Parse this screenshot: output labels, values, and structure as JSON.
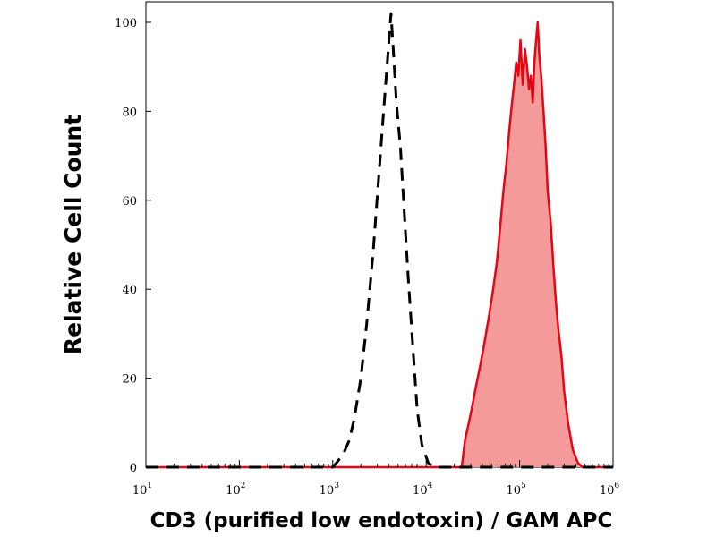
{
  "chart_data": {
    "type": "area",
    "xlabel": "CD3 (purified low endotoxin) / GAM APC",
    "ylabel": "Relative Cell Count",
    "x_scale": "log",
    "xlim": [
      10,
      1000000
    ],
    "ylim": [
      0,
      100
    ],
    "x_ticks": [
      {
        "base": "10",
        "exp": "1",
        "value": 10
      },
      {
        "base": "10",
        "exp": "2",
        "value": 100
      },
      {
        "base": "10",
        "exp": "3",
        "value": 1000
      },
      {
        "base": "10",
        "exp": "4",
        "value": 10000
      },
      {
        "base": "10",
        "exp": "5",
        "value": 100000
      },
      {
        "base": "10",
        "exp": "6",
        "value": 1000000
      }
    ],
    "y_ticks": [
      "0",
      "20",
      "40",
      "60",
      "80",
      "100"
    ],
    "series": [
      {
        "style": "dashed",
        "color": "#000000",
        "fill": "none",
        "points": [
          [
            10,
            0
          ],
          [
            100,
            0
          ],
          [
            1000,
            0
          ],
          [
            1100,
            1
          ],
          [
            1300,
            3
          ],
          [
            1500,
            6
          ],
          [
            1700,
            11
          ],
          [
            2000,
            20
          ],
          [
            2300,
            32
          ],
          [
            2700,
            48
          ],
          [
            3100,
            65
          ],
          [
            3500,
            80
          ],
          [
            3900,
            93
          ],
          [
            4200,
            102
          ],
          [
            4500,
            92
          ],
          [
            4800,
            82
          ],
          [
            5300,
            72
          ],
          [
            5800,
            58
          ],
          [
            6400,
            43
          ],
          [
            7200,
            27
          ],
          [
            8000,
            13
          ],
          [
            9000,
            5
          ],
          [
            10500,
            1
          ],
          [
            12000,
            0
          ],
          [
            1000000,
            0
          ]
        ]
      },
      {
        "style": "solid",
        "color": "#e30613",
        "fill": "#f49a9a",
        "points": [
          [
            10,
            0
          ],
          [
            10000,
            0
          ],
          [
            24000,
            0
          ],
          [
            26000,
            6
          ],
          [
            30000,
            12
          ],
          [
            34000,
            18
          ],
          [
            38000,
            23
          ],
          [
            42000,
            28
          ],
          [
            47000,
            34
          ],
          [
            52000,
            40
          ],
          [
            57000,
            46
          ],
          [
            62000,
            54
          ],
          [
            67000,
            62
          ],
          [
            72000,
            68
          ],
          [
            77000,
            75
          ],
          [
            82000,
            81
          ],
          [
            87000,
            86
          ],
          [
            92000,
            91
          ],
          [
            97000,
            88
          ],
          [
            102000,
            96
          ],
          [
            108000,
            86
          ],
          [
            114000,
            94
          ],
          [
            120000,
            90
          ],
          [
            126000,
            85
          ],
          [
            132000,
            88
          ],
          [
            138000,
            82
          ],
          [
            144000,
            91
          ],
          [
            150000,
            96
          ],
          [
            156000,
            100
          ],
          [
            162000,
            93
          ],
          [
            170000,
            88
          ],
          [
            180000,
            80
          ],
          [
            190000,
            72
          ],
          [
            200000,
            62
          ],
          [
            215000,
            55
          ],
          [
            230000,
            45
          ],
          [
            245000,
            37
          ],
          [
            260000,
            31
          ],
          [
            280000,
            25
          ],
          [
            300000,
            17
          ],
          [
            330000,
            10
          ],
          [
            370000,
            4
          ],
          [
            420000,
            1
          ],
          [
            470000,
            0
          ],
          [
            1000000,
            0
          ]
        ]
      }
    ]
  }
}
